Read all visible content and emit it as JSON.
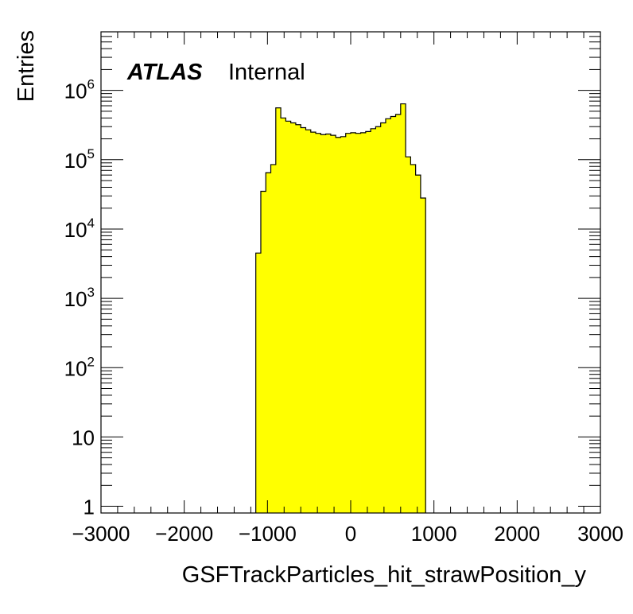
{
  "chart_data": {
    "type": "histogram",
    "xlabel": "GSFTrackParticles_hit_strawPosition_y",
    "ylabel": "Entries",
    "xlim": [
      -3000,
      3000
    ],
    "ylim": [
      0.8,
      7000000
    ],
    "log_y": true,
    "xticks": [
      "−3000",
      "−2000",
      "−1000",
      "0",
      "1000",
      "2000",
      "3000"
    ],
    "yticks": [
      {
        "base": "1",
        "exp": ""
      },
      {
        "base": "10",
        "exp": ""
      },
      {
        "base": "10",
        "exp": "2"
      },
      {
        "base": "10",
        "exp": "3"
      },
      {
        "base": "10",
        "exp": "4"
      },
      {
        "base": "10",
        "exp": "5"
      },
      {
        "base": "10",
        "exp": "6"
      }
    ],
    "fill_color": "#ffff00",
    "line_color": "#000000",
    "bin_width": 60,
    "bin_edges_start": -1140,
    "values": [
      4500,
      35000,
      65000,
      85000,
      560000,
      400000,
      360000,
      340000,
      320000,
      290000,
      270000,
      250000,
      240000,
      230000,
      235000,
      225000,
      210000,
      215000,
      240000,
      245000,
      240000,
      245000,
      255000,
      280000,
      300000,
      340000,
      390000,
      420000,
      450000,
      640000,
      110000,
      85000,
      60000,
      28000
    ],
    "annotation": {
      "bold": "ATLAS",
      "normal": "Internal"
    }
  }
}
